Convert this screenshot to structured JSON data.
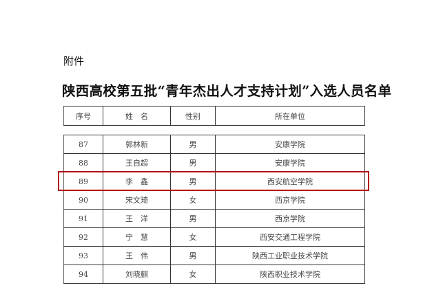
{
  "attachment_label": "附件",
  "title": "陕西高校第五批“青年杰出人才支持计划”入选人员名单",
  "table": {
    "headers": [
      "序号",
      "姓　名",
      "性别",
      "所在单位"
    ],
    "rows": [
      [
        "87",
        "郭林新",
        "男",
        "安康学院"
      ],
      [
        "88",
        "王自超",
        "男",
        "安康学院"
      ],
      [
        "89",
        "李　鑫",
        "男",
        "西安航空学院"
      ],
      [
        "90",
        "宋文琦",
        "女",
        "西京学院"
      ],
      [
        "91",
        "王　洋",
        "男",
        "西京学院"
      ],
      [
        "92",
        "宁　慧",
        "女",
        "西安交通工程学院"
      ],
      [
        "93",
        "王　伟",
        "男",
        "陕西工业职业技术学院"
      ],
      [
        "94",
        "刘晓麒",
        "女",
        "陕西职业技术学院"
      ]
    ],
    "highlighted_row": "89",
    "highlight_color": "#b40f14"
  }
}
